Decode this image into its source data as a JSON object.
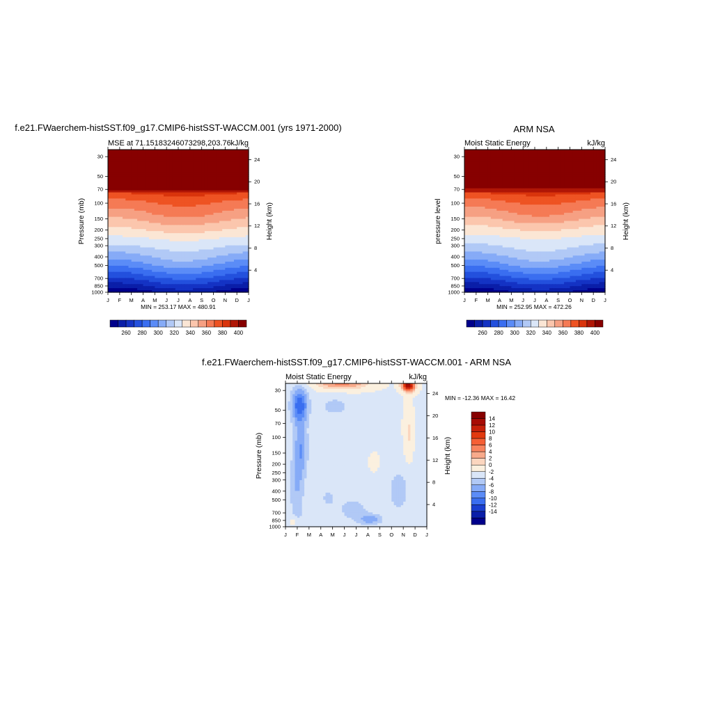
{
  "figure": {
    "top_title": "f.e21.FWaerchem-histSST.f09_g17.CMIP6-histSST-WACCM.001 (yrs 1971-2000)",
    "right_title": "ARM NSA",
    "diff_title": "f.e21.FWaerchem-histSST.f09_g17.CMIP6-histSST-WACCM.001 - ARM NSA"
  },
  "chart_data": [
    {
      "type": "heatmap",
      "name": "model",
      "left_label": "MSE at 71.15183246073298,203.76",
      "right_label": "kJ/kg",
      "ylabel": "Pressure (mb)",
      "ylabel2": "Height (km)",
      "months": [
        "J",
        "F",
        "M",
        "A",
        "M",
        "J",
        "J",
        "A",
        "S",
        "O",
        "N",
        "D",
        "J"
      ],
      "pressure_ticks": [
        30,
        50,
        70,
        100,
        150,
        200,
        250,
        300,
        400,
        500,
        700,
        850,
        1000
      ],
      "height_ticks": [
        24,
        20,
        16,
        12,
        8,
        4
      ],
      "stats": "MIN = 253.17 MAX = 480.91",
      "colorbar_labels": [
        "260",
        "280",
        "300",
        "320",
        "340",
        "360",
        "380",
        "400"
      ]
    },
    {
      "type": "heatmap",
      "name": "obs",
      "left_label": "Moist Static Energy",
      "right_label": "kJ/kg",
      "ylabel": "pressure level",
      "ylabel2": "Height (km)",
      "months": [
        "J",
        "F",
        "M",
        "A",
        "M",
        "J",
        "J",
        "A",
        "S",
        "O",
        "N",
        "D",
        "J"
      ],
      "pressure_ticks": [
        30,
        50,
        70,
        100,
        150,
        200,
        250,
        300,
        400,
        500,
        700,
        850,
        1000
      ],
      "height_ticks": [
        24,
        20,
        16,
        12,
        8,
        4
      ],
      "stats": "MIN = 252.95 MAX = 472.26",
      "colorbar_labels": [
        "260",
        "280",
        "300",
        "320",
        "340",
        "360",
        "380",
        "400"
      ]
    },
    {
      "type": "heatmap",
      "name": "diff",
      "left_label": "Moist Static Energy",
      "right_label": "kJ/kg",
      "ylabel": "Pressure (mb)",
      "ylabel2": "Height (km)",
      "months": [
        "J",
        "F",
        "M",
        "A",
        "M",
        "J",
        "J",
        "A",
        "S",
        "O",
        "N",
        "D",
        "J"
      ],
      "pressure_ticks": [
        30,
        50,
        70,
        100,
        150,
        200,
        250,
        300,
        400,
        500,
        700,
        850,
        1000
      ],
      "height_ticks": [
        24,
        20,
        16,
        12,
        8,
        4
      ],
      "stats": "MIN = -12.36 MAX =  16.42",
      "colorbar_labels": [
        "14",
        "12",
        "10",
        "8",
        "6",
        "4",
        "2",
        "0",
        "-2",
        "-4",
        "-6",
        "-8",
        "-10",
        "-12",
        "-14"
      ]
    }
  ],
  "colors": {
    "seq": [
      "#00008b",
      "#0a1ea8",
      "#1433c4",
      "#2350dd",
      "#3a6ef0",
      "#5b8cf7",
      "#86abf7",
      "#b1c9f6",
      "#dae6f8",
      "#fbe6d5",
      "#fbc6ad",
      "#f6a083",
      "#f57a55",
      "#ee5323",
      "#d9340c",
      "#b01606",
      "#870000"
    ],
    "div": [
      "#870000",
      "#a70c05",
      "#c6200a",
      "#e2390f",
      "#f55f35",
      "#f8845f",
      "#f8aa8b",
      "#fbd6bf",
      "#fbf0df",
      "#dae6f8",
      "#b1c9f6",
      "#86abf7",
      "#5b8cf7",
      "#3a6ef0",
      "#1a3fd0",
      "#0a1ea8",
      "#00008b"
    ]
  }
}
